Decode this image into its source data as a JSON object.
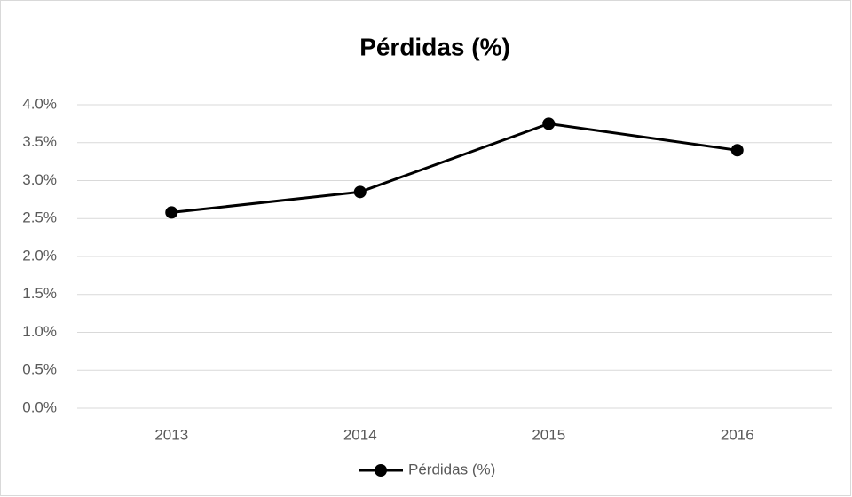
{
  "chart_data": {
    "type": "line",
    "title": "Pérdidas (%)",
    "categories": [
      "2013",
      "2014",
      "2015",
      "2016"
    ],
    "series": [
      {
        "name": "Pérdidas (%)",
        "color": "#000000",
        "values": [
          2.58,
          2.85,
          3.75,
          3.4
        ]
      }
    ],
    "ylim": [
      0,
      4
    ],
    "yticks": [
      {
        "value": 0,
        "label": "0.0%"
      },
      {
        "value": 0.5,
        "label": "0.5%"
      },
      {
        "value": 1,
        "label": "1.0%"
      },
      {
        "value": 1.5,
        "label": "1.5%"
      },
      {
        "value": 2,
        "label": "2.0%"
      },
      {
        "value": 2.5,
        "label": "2.5%"
      },
      {
        "value": 3,
        "label": "3.0%"
      },
      {
        "value": 3.5,
        "label": "3.5%"
      },
      {
        "value": 4,
        "label": "4.0%"
      }
    ],
    "grid": true,
    "legend": "bottom"
  }
}
